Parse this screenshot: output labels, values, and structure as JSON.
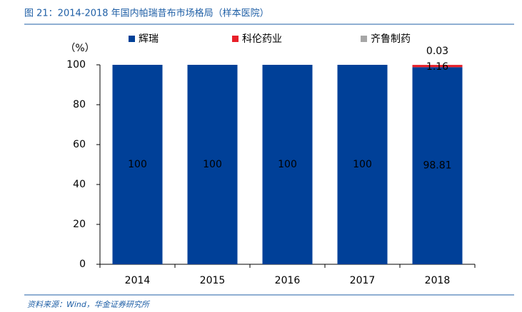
{
  "chart_data": {
    "type": "stacked_bar",
    "title": "图 21：2014-2018 年国内帕瑞昔布市场格局（样本医院）",
    "y_label": "（%）",
    "source": "资料来源：Wind，华金证券研究所",
    "categories": [
      "2014",
      "2015",
      "2016",
      "2017",
      "2018"
    ],
    "series": [
      {
        "name": "辉瑞",
        "color": "#004098",
        "values": [
          100,
          100,
          100,
          100,
          98.81
        ]
      },
      {
        "name": "科伦药业",
        "color": "#e8202a",
        "values": [
          null,
          null,
          null,
          null,
          1.16
        ]
      },
      {
        "name": "齐鲁制药",
        "color": "#a6a6a6",
        "values": [
          null,
          null,
          null,
          null,
          0.03
        ]
      }
    ],
    "ylim": [
      0,
      100
    ],
    "yticks": [
      0,
      20,
      40,
      60,
      80,
      100
    ],
    "grid": false
  }
}
